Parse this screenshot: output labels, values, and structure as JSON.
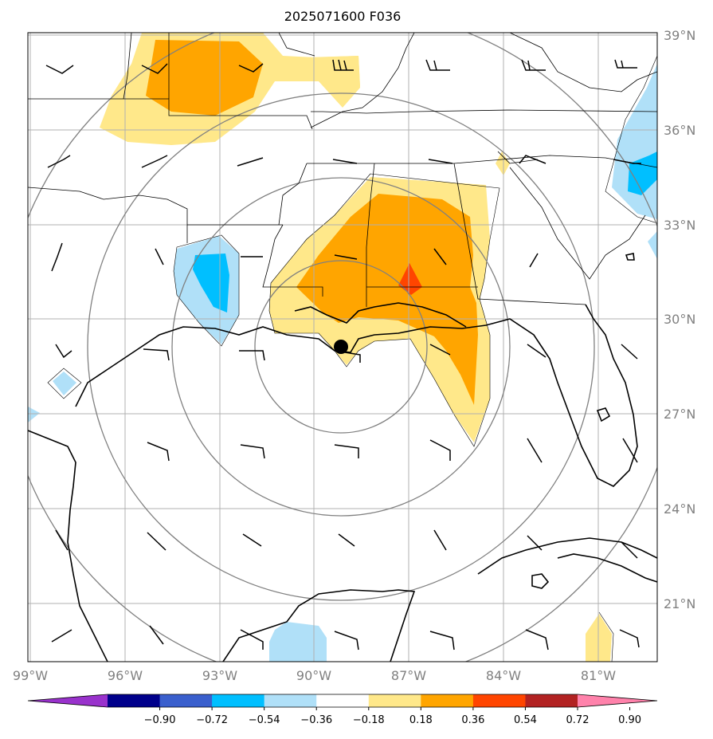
{
  "title": "2025071600 F036",
  "lat_labels": [
    "39°N",
    "36°N",
    "33°N",
    "30°N",
    "27°N",
    "24°N",
    "21°N"
  ],
  "lon_labels": [
    "99°W",
    "96°W",
    "93°W",
    "90°W",
    "87°W",
    "84°W",
    "81°W"
  ],
  "colorbar": {
    "colors": [
      "#9932cc",
      "#00008b",
      "#3a5fcd",
      "#00bfff",
      "#b0e0f8",
      "#ffffff",
      "#ffe88a",
      "#ffa500",
      "#ff4500",
      "#b22222",
      "#ff82ab"
    ],
    "ticks": [
      "−0.90",
      "−0.72",
      "−0.54",
      "−0.36",
      "−0.18",
      "0.18",
      "0.36",
      "0.54",
      "0.72",
      "0.90"
    ]
  },
  "colors": {
    "pos_light": "#ffe88a",
    "pos_mid": "#ffa500",
    "pos_high": "#ff4500",
    "neg_light": "#b0e0f8",
    "neg_mid": "#00bfff",
    "grid": "#b0b0b0",
    "rings": "#808080"
  },
  "storm_center": {
    "lat": 29.1,
    "lon": -89.9
  },
  "map_extent": {
    "lon_min": -99,
    "lon_max": -79,
    "lat_min": 19.2,
    "lat_max": 39
  }
}
